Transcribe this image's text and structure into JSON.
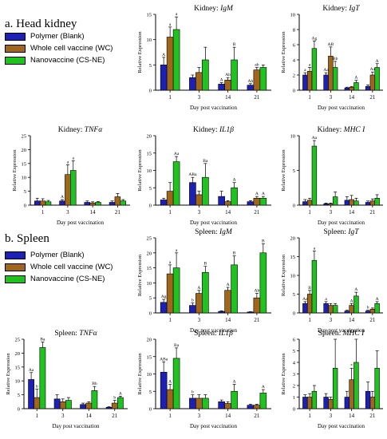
{
  "figure": {
    "section_a": "a.  Head kidney",
    "section_b": "b.  Spleen"
  },
  "legend": {
    "items": [
      {
        "label": "Polymer (Blank)",
        "color": "#1c20b5"
      },
      {
        "label": "Whole cell vaccine (WC)",
        "color": "#a0671c"
      },
      {
        "label": "Nanovaccine (CS-NE)",
        "color": "#1fc21f"
      }
    ]
  },
  "chart_data": [
    {
      "type": "bar",
      "group": "Head kidney",
      "title_prefix": "Kidney: ",
      "title_gene": "IgM",
      "xlabel": "Day post vaccination",
      "ylabel": "Relative Expression",
      "categories": [
        "1",
        "3",
        "14",
        "21"
      ],
      "ylim": [
        0,
        15
      ],
      "yticks": [
        0,
        5,
        10,
        15
      ],
      "series": [
        {
          "name": "Polymer (Blank)",
          "values": [
            5.0,
            2.5,
            1.2,
            1.0
          ],
          "errors": [
            1.5,
            0.5,
            0.3,
            0.3
          ]
        },
        {
          "name": "Whole cell vaccine (WC)",
          "values": [
            10.5,
            3.5,
            2.0,
            4.0
          ],
          "errors": [
            2.0,
            1.0,
            0.5,
            0.5
          ]
        },
        {
          "name": "Nanovaccine (CS-NE)",
          "values": [
            12.0,
            6.0,
            6.0,
            4.5
          ],
          "errors": [
            2.5,
            2.5,
            2.5,
            0.5
          ]
        }
      ],
      "annotations": [
        [
          "A",
          "a",
          "a"
        ],
        [
          "",
          "",
          ""
        ],
        [
          "A",
          "Ab",
          "B"
        ],
        [
          "Ab",
          "ab",
          ""
        ]
      ]
    },
    {
      "type": "bar",
      "group": "Head kidney",
      "title_prefix": "Kidney: ",
      "title_gene": "IgT",
      "xlabel": "Day post vaccination",
      "ylabel": "Relative Expression",
      "categories": [
        "1",
        "3",
        "14",
        "21"
      ],
      "ylim": [
        0,
        10
      ],
      "yticks": [
        0,
        2,
        4,
        6,
        8,
        10
      ],
      "series": [
        {
          "name": "Polymer (Blank)",
          "values": [
            2.0,
            2.0,
            0.3,
            0.5
          ],
          "errors": [
            0.3,
            0.3,
            0.1,
            0.2
          ]
        },
        {
          "name": "Whole cell vaccine (WC)",
          "values": [
            2.5,
            4.5,
            0.4,
            2.0
          ],
          "errors": [
            0.5,
            1.2,
            0.1,
            0.4
          ]
        },
        {
          "name": "Nanovaccine (CS-NE)",
          "values": [
            5.5,
            3.0,
            1.0,
            3.0
          ],
          "errors": [
            1.0,
            0.8,
            0.3,
            0.5
          ]
        }
      ],
      "annotations": [
        [
          "a",
          "a",
          "Ag"
        ],
        [
          "Aa",
          "AB",
          "Bb"
        ],
        [
          "",
          "",
          "A"
        ],
        [
          "",
          "Aa",
          "A"
        ]
      ]
    },
    {
      "type": "bar",
      "group": "Head kidney",
      "title_prefix": "Kidney: ",
      "title_gene": "TNFα",
      "xlabel": "Day post vaccination",
      "ylabel": "Relative Expression",
      "categories": [
        "1",
        "3",
        "14",
        "21"
      ],
      "ylim": [
        0,
        25
      ],
      "yticks": [
        0,
        5,
        10,
        15,
        20,
        25
      ],
      "series": [
        {
          "name": "Polymer (Blank)",
          "values": [
            1.5,
            1.5,
            1.0,
            1.0
          ],
          "errors": [
            1.0,
            0.5,
            0.5,
            0.5
          ]
        },
        {
          "name": "Whole cell vaccine (WC)",
          "values": [
            1.5,
            11.0,
            0.8,
            3.0
          ],
          "errors": [
            0.8,
            3.5,
            0.4,
            1.2
          ]
        },
        {
          "name": "Nanovaccine (CS-NE)",
          "values": [
            1.2,
            12.5,
            1.0,
            1.5
          ],
          "errors": [
            0.5,
            3.5,
            0.3,
            0.5
          ]
        }
      ],
      "annotations": [
        [
          "",
          "",
          ""
        ],
        [
          "A",
          "a",
          "a"
        ],
        [
          "",
          "",
          ""
        ],
        [
          "",
          "",
          ""
        ]
      ]
    },
    {
      "type": "bar",
      "group": "Head kidney",
      "title_prefix": "Kidney: ",
      "title_gene": "IL1β",
      "xlabel": "Day post vaccination",
      "ylabel": "Relative Expression",
      "categories": [
        "1",
        "3",
        "14",
        "21"
      ],
      "ylim": [
        0,
        20
      ],
      "yticks": [
        0,
        5,
        10,
        15,
        20
      ],
      "series": [
        {
          "name": "Polymer (Blank)",
          "values": [
            1.5,
            6.5,
            2.5,
            1.0
          ],
          "errors": [
            0.5,
            1.5,
            1.5,
            0.3
          ]
        },
        {
          "name": "Whole cell vaccine (WC)",
          "values": [
            4.0,
            3.0,
            1.0,
            2.0
          ],
          "errors": [
            2.5,
            1.0,
            0.3,
            0.5
          ]
        },
        {
          "name": "Nanovaccine (CS-NE)",
          "values": [
            12.5,
            8.0,
            5.0,
            2.0
          ],
          "errors": [
            1.5,
            4.0,
            1.5,
            0.5
          ]
        }
      ],
      "annotations": [
        [
          "",
          "",
          "Aa"
        ],
        [
          "ABa",
          "",
          "Ba"
        ],
        [
          "",
          "",
          "A"
        ],
        [
          "",
          "A",
          "A"
        ]
      ]
    },
    {
      "type": "bar",
      "group": "Head kidney",
      "title_prefix": "Kidney: ",
      "title_gene": "MHC I",
      "xlabel": "Day post vaccination",
      "ylabel": "Relative Expression",
      "categories": [
        "1",
        "3",
        "14",
        "21"
      ],
      "ylim": [
        0,
        10
      ],
      "yticks": [
        0,
        5,
        10
      ],
      "series": [
        {
          "name": "Polymer (Blank)",
          "values": [
            0.5,
            0.2,
            0.7,
            0.4
          ],
          "errors": [
            0.3,
            0.1,
            0.5,
            0.2
          ]
        },
        {
          "name": "Whole cell vaccine (WC)",
          "values": [
            0.7,
            0.2,
            0.8,
            0.6
          ],
          "errors": [
            0.3,
            0.1,
            0.6,
            0.3
          ]
        },
        {
          "name": "Nanovaccine (CS-NE)",
          "values": [
            8.5,
            1.2,
            0.6,
            1.0
          ],
          "errors": [
            0.8,
            0.7,
            0.4,
            0.5
          ]
        }
      ],
      "annotations": [
        [
          "",
          "",
          "Aa"
        ],
        [
          "",
          "",
          ""
        ],
        [
          "",
          "",
          ""
        ],
        [
          "",
          "",
          ""
        ]
      ]
    },
    {
      "type": "bar",
      "group": "Spleen",
      "title_prefix": "Spleen: ",
      "title_gene": "IgM",
      "xlabel": "Day post vaccination",
      "ylabel": "Relative Expression",
      "categories": [
        "1",
        "3",
        "14",
        "21"
      ],
      "ylim": [
        0,
        25
      ],
      "yticks": [
        0,
        5,
        10,
        15,
        20,
        25
      ],
      "series": [
        {
          "name": "Polymer (Blank)",
          "values": [
            3.5,
            2.5,
            0.5,
            0.3
          ],
          "errors": [
            1.0,
            0.8,
            0.2,
            0.1
          ]
        },
        {
          "name": "Whole cell vaccine (WC)",
          "values": [
            13.0,
            6.5,
            7.5,
            5.0
          ],
          "errors": [
            3.0,
            1.0,
            1.0,
            1.5
          ]
        },
        {
          "name": "Nanovaccine (CS-NE)",
          "values": [
            15.0,
            13.5,
            16.0,
            20.0
          ],
          "errors": [
            5.0,
            2.0,
            3.0,
            3.0
          ]
        }
      ],
      "annotations": [
        [
          "Ag",
          "a",
          "a"
        ],
        [
          "b",
          "A",
          "B"
        ],
        [
          "",
          "A",
          "B"
        ],
        [
          "",
          "Ab",
          "B"
        ]
      ]
    },
    {
      "type": "bar",
      "group": "Spleen",
      "title_prefix": "Spleen: ",
      "title_gene": "IgT",
      "xlabel": "Day post vaccination",
      "ylabel": "Relative Expression",
      "categories": [
        "1",
        "3",
        "14",
        "21"
      ],
      "ylim": [
        0,
        20
      ],
      "yticks": [
        0,
        5,
        10,
        15,
        20
      ],
      "series": [
        {
          "name": "Polymer (Blank)",
          "values": [
            2.5,
            2.5,
            0.5,
            0.5
          ],
          "errors": [
            0.5,
            0.5,
            0.2,
            0.2
          ]
        },
        {
          "name": "Whole cell vaccine (WC)",
          "values": [
            5.0,
            2.0,
            2.0,
            1.0
          ],
          "errors": [
            1.0,
            0.5,
            0.5,
            0.3
          ]
        },
        {
          "name": "Nanovaccine (CS-NE)",
          "values": [
            14.0,
            2.0,
            4.5,
            2.5
          ],
          "errors": [
            2.5,
            0.5,
            1.0,
            0.5
          ]
        }
      ],
      "annotations": [
        [
          "Aa",
          "B",
          "a"
        ],
        [
          "a",
          "",
          ""
        ],
        [
          "",
          "A",
          "A"
        ],
        [
          "b",
          "",
          "A"
        ]
      ]
    },
    {
      "type": "bar",
      "group": "Spleen",
      "title_prefix": "Spleen: ",
      "title_gene": "TNFα",
      "xlabel": "Day post vaccination",
      "ylabel": "Relative Expression",
      "categories": [
        "1",
        "3",
        "14",
        "21"
      ],
      "ylim": [
        0,
        25
      ],
      "yticks": [
        0,
        5,
        10,
        15,
        20,
        25
      ],
      "series": [
        {
          "name": "Polymer (Blank)",
          "values": [
            10.5,
            3.5,
            1.5,
            0.5
          ],
          "errors": [
            2.5,
            1.5,
            0.5,
            0.2
          ]
        },
        {
          "name": "Whole cell vaccine (WC)",
          "values": [
            4.0,
            2.5,
            2.0,
            2.0
          ],
          "errors": [
            3.0,
            1.0,
            0.5,
            1.0
          ]
        },
        {
          "name": "Nanovaccine (CS-NE)",
          "values": [
            22.0,
            3.0,
            6.5,
            4.0
          ],
          "errors": [
            2.0,
            1.0,
            1.5,
            0.5
          ]
        }
      ],
      "annotations": [
        [
          "Aa",
          "b",
          "Ba"
        ],
        [
          "",
          "",
          ""
        ],
        [
          "",
          "",
          "Bb"
        ],
        [
          "",
          "b",
          "A"
        ]
      ]
    },
    {
      "type": "bar",
      "group": "Spleen",
      "title_prefix": "Spleen: ",
      "title_gene": "IL1β",
      "xlabel": "Day post vaccination",
      "ylabel": "Relative Expression",
      "categories": [
        "1",
        "3",
        "14",
        "21"
      ],
      "ylim": [
        0,
        20
      ],
      "yticks": [
        0,
        5,
        10,
        15,
        20
      ],
      "series": [
        {
          "name": "Polymer (Blank)",
          "values": [
            10.5,
            3.0,
            2.0,
            1.0
          ],
          "errors": [
            3.0,
            1.0,
            0.5,
            0.3
          ]
        },
        {
          "name": "Whole cell vaccine (WC)",
          "values": [
            5.5,
            3.0,
            1.5,
            1.0
          ],
          "errors": [
            1.5,
            1.0,
            0.5,
            0.3
          ]
        },
        {
          "name": "Nanovaccine (CS-NE)",
          "values": [
            14.5,
            3.0,
            5.0,
            4.5
          ],
          "errors": [
            3.0,
            1.0,
            2.0,
            1.0
          ]
        }
      ],
      "annotations": [
        [
          "ABa",
          "A",
          "Ba"
        ],
        [
          "b",
          "",
          ""
        ],
        [
          "",
          "",
          "A"
        ],
        [
          "",
          "",
          "A"
        ]
      ]
    },
    {
      "type": "bar",
      "group": "Spleen",
      "title_prefix": "Spleen: ",
      "title_gene": "MHC I",
      "xlabel": "Day post vaccination",
      "ylabel": "Relative Expression",
      "categories": [
        "1",
        "3",
        "14",
        "21"
      ],
      "ylim": [
        0,
        6
      ],
      "yticks": [
        0,
        1,
        2,
        3,
        4,
        5,
        6
      ],
      "series": [
        {
          "name": "Polymer (Blank)",
          "values": [
            1.0,
            1.0,
            1.0,
            1.5
          ],
          "errors": [
            0.2,
            0.3,
            0.5,
            0.8
          ]
        },
        {
          "name": "Whole cell vaccine (WC)",
          "values": [
            1.0,
            0.8,
            2.5,
            1.0
          ],
          "errors": [
            0.3,
            0.2,
            1.0,
            0.5
          ]
        },
        {
          "name": "Nanovaccine (CS-NE)",
          "values": [
            1.5,
            3.5,
            4.0,
            3.5
          ],
          "errors": [
            0.5,
            2.5,
            2.0,
            1.5
          ]
        }
      ],
      "annotations": [
        [
          "",
          "",
          ""
        ],
        [
          "",
          "",
          ""
        ],
        [
          "",
          "*",
          ""
        ],
        [
          "",
          "",
          ""
        ]
      ]
    }
  ]
}
